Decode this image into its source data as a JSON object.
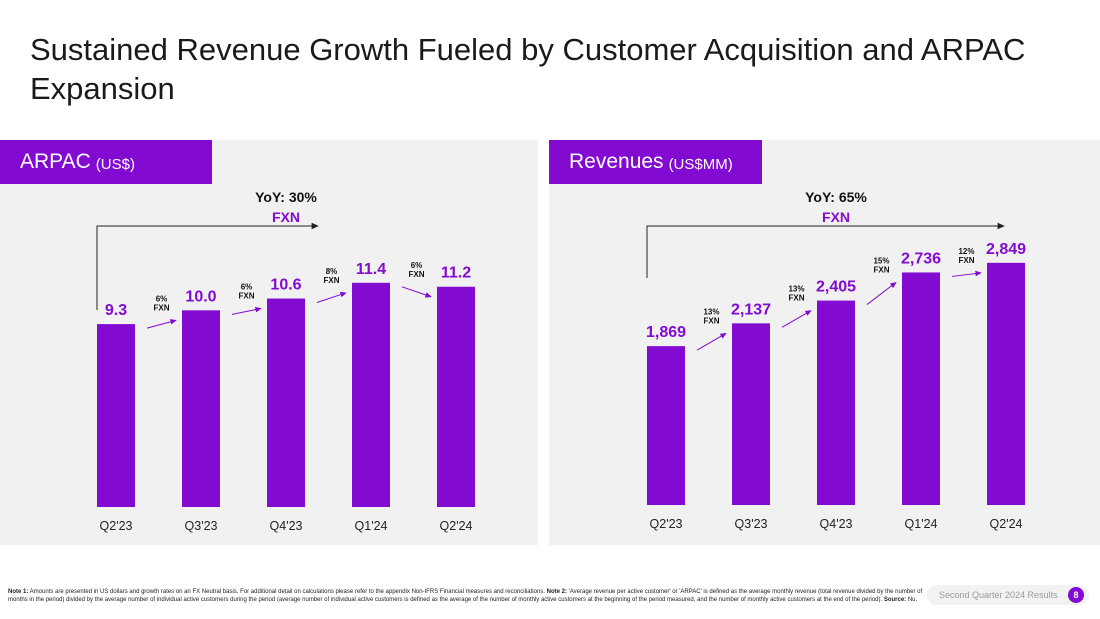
{
  "title": "Sustained Revenue Growth Fueled by Customer Acquisition and ARPAC Expansion",
  "colors": {
    "accent": "#820ad1",
    "panel_bg": "#f1f1f1"
  },
  "chart_data": [
    {
      "type": "bar",
      "header": {
        "title": "ARPAC",
        "unit": "(US$)"
      },
      "categories": [
        "Q2'23",
        "Q3'23",
        "Q4'23",
        "Q1'24",
        "Q2'24"
      ],
      "values": [
        9.3,
        10.0,
        10.6,
        11.4,
        11.2
      ],
      "value_labels": [
        "9.3",
        "10.0",
        "10.6",
        "11.4",
        "11.2"
      ],
      "growth": [
        {
          "pct": "6%",
          "label": "FXN"
        },
        {
          "pct": "6%",
          "label": "FXN"
        },
        {
          "pct": "8%",
          "label": "FXN"
        },
        {
          "pct": "6%",
          "label": "FXN"
        }
      ],
      "yoy": {
        "text": "YoY: 30%",
        "label": "FXN"
      },
      "ylim": [
        0,
        12
      ]
    },
    {
      "type": "bar",
      "header": {
        "title": "Revenues",
        "unit": "(US$MM)"
      },
      "categories": [
        "Q2'23",
        "Q3'23",
        "Q4'23",
        "Q1'24",
        "Q2'24"
      ],
      "values": [
        1869,
        2137,
        2405,
        2736,
        2849
      ],
      "value_labels": [
        "1,869",
        "2,137",
        "2,405",
        "2,736",
        "2,849"
      ],
      "growth": [
        {
          "pct": "13%",
          "label": "FXN"
        },
        {
          "pct": "13%",
          "label": "FXN"
        },
        {
          "pct": "15%",
          "label": "FXN"
        },
        {
          "pct": "12%",
          "label": "FXN"
        }
      ],
      "yoy": {
        "text": "YoY: 65%",
        "label": "FXN"
      },
      "ylim": [
        0,
        3000
      ]
    }
  ],
  "footer": {
    "note1_label": "Note 1:",
    "note1_text": " Amounts are presented in US dollars and growth rates on an FX Neutral basis. For additional detail on calculations please refer to the appendix Non-IFRS Financial measures and reconciliations. ",
    "note2_label": "Note 2:",
    "note2_text": " 'Average revenue per active customer' or 'ARPAC' is defined as the average monthly revenue (total revenue divided by the number of months in the period) divided by the average number of individual active customers during the period (average number of individual active customers is defined as the average of the number of monthly active customers at the beginning of the period measured, and the number of monthly active customers at the end of the period). ",
    "source_label": "Source:",
    "source_text": " Nu."
  },
  "report_label": "Second Quarter 2024 Results",
  "page_number": "8"
}
